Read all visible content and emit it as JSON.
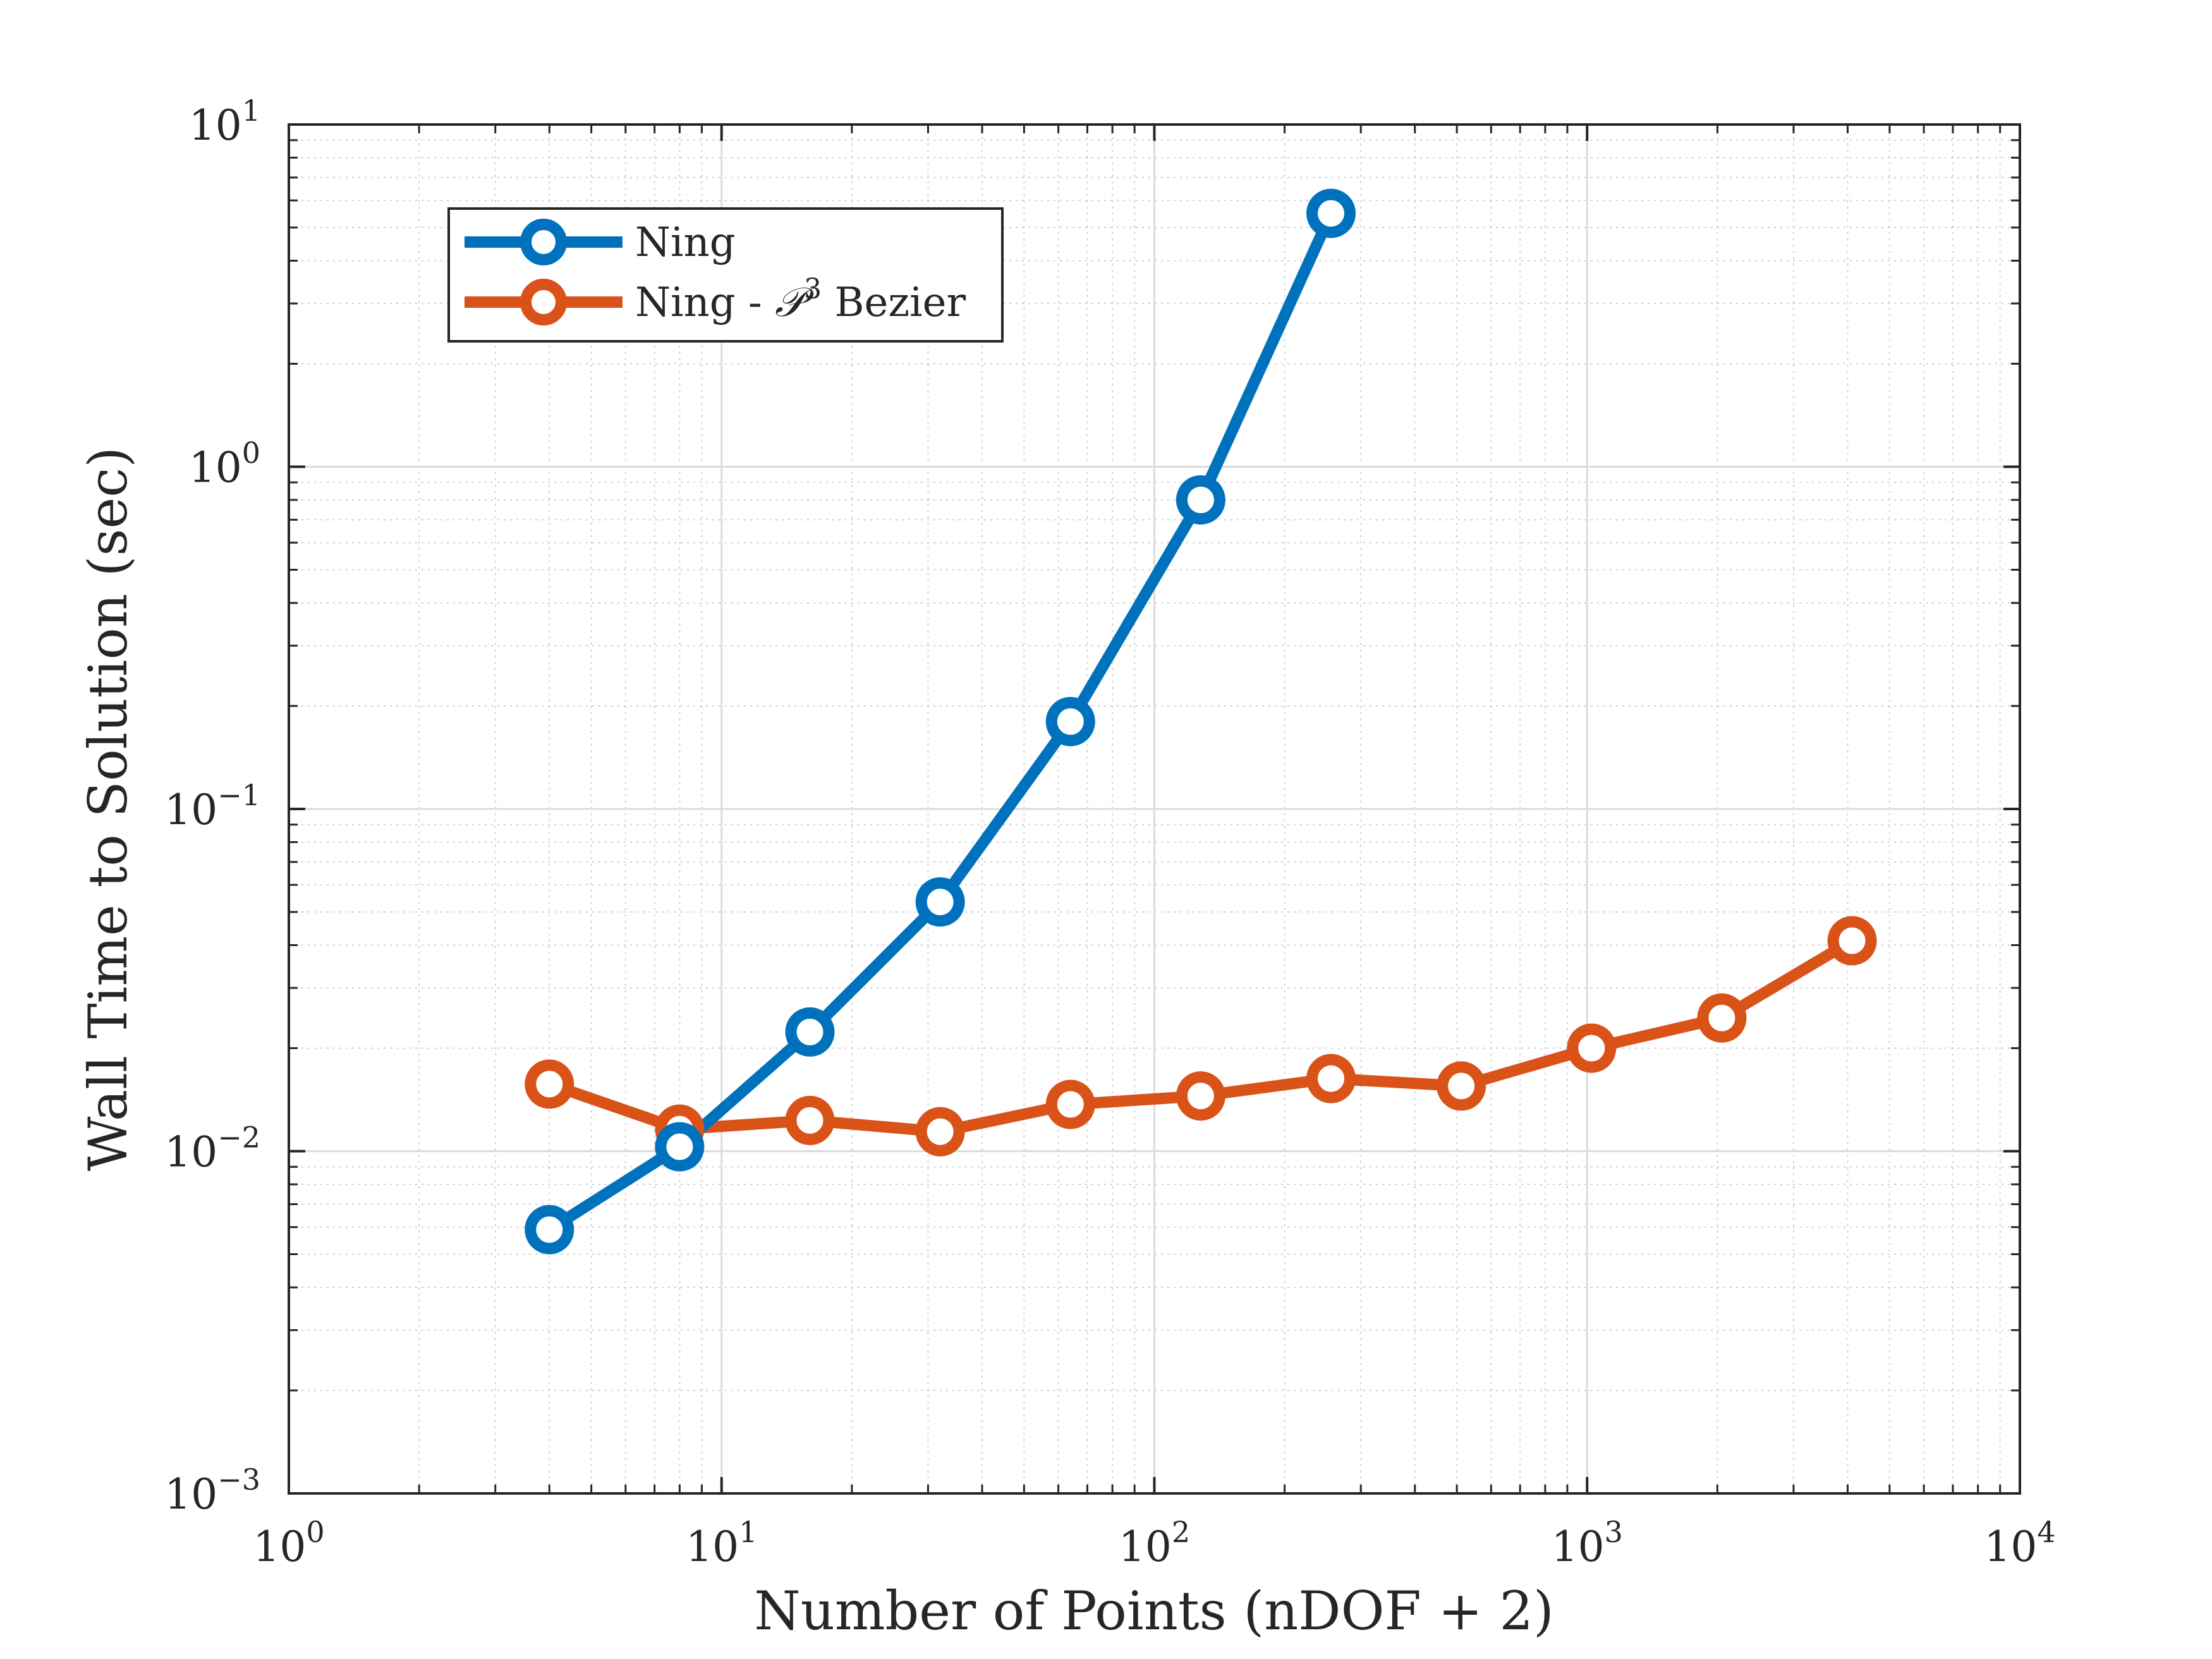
{
  "chart_data": {
    "type": "line",
    "title": "",
    "xlabel": "Number of Points (nDOF + 2)",
    "ylabel": "Wall Time to Solution (sec)",
    "xscale": "log",
    "yscale": "log",
    "xlim": [
      1,
      10000
    ],
    "ylim": [
      0.001,
      10
    ],
    "grid": true,
    "minor_grid": true,
    "legend_position": "top-left",
    "x_ticks": [
      {
        "base": "10",
        "exp": "0"
      },
      {
        "base": "10",
        "exp": "1"
      },
      {
        "base": "10",
        "exp": "2"
      },
      {
        "base": "10",
        "exp": "3"
      },
      {
        "base": "10",
        "exp": "4"
      }
    ],
    "y_ticks": [
      {
        "base": "10",
        "exp": "1"
      },
      {
        "base": "10",
        "exp": "0"
      },
      {
        "base": "10",
        "exp": "−1"
      },
      {
        "base": "10",
        "exp": "−2"
      },
      {
        "base": "10",
        "exp": "−3"
      }
    ],
    "series": [
      {
        "name": "Ning",
        "legend_text": "Ning",
        "color": "#0072BD",
        "x": [
          4,
          8,
          16,
          32,
          64,
          128,
          256
        ],
        "y": [
          0.0059,
          0.0103,
          0.0223,
          0.0535,
          0.18,
          0.8,
          5.5
        ]
      },
      {
        "name": "Ning - 𝒫³ Bezier",
        "legend_text": "Ning - ",
        "legend_symbol": "𝒫",
        "legend_sup": "3",
        "legend_suffix": " Bezier",
        "color": "#D95319",
        "x": [
          4,
          8,
          16,
          32,
          64,
          128,
          256,
          512,
          1024,
          2048,
          4096
        ],
        "y": [
          0.0157,
          0.0116,
          0.0123,
          0.0114,
          0.0137,
          0.0145,
          0.0163,
          0.0155,
          0.02,
          0.0245,
          0.0412
        ]
      }
    ]
  }
}
